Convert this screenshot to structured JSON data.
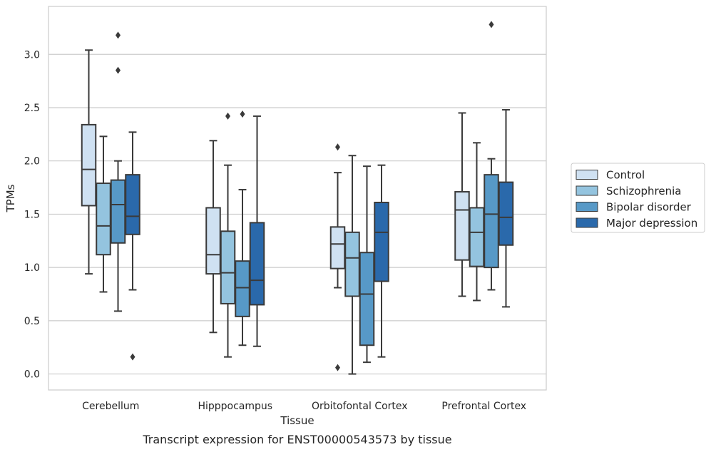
{
  "chart_data": {
    "type": "box",
    "title": "",
    "caption": "Transcript expression for ENST00000543573 by tissue",
    "xlabel": "Tissue",
    "ylabel": "TPMs",
    "ylim": [
      -0.15,
      3.45
    ],
    "yticks": [
      0.0,
      0.5,
      1.0,
      1.5,
      2.0,
      2.5,
      3.0
    ],
    "ytick_labels": [
      "0.0",
      "0.5",
      "1.0",
      "1.5",
      "2.0",
      "2.5",
      "3.0"
    ],
    "grid": "horizontal",
    "legend_position": "right",
    "categories": [
      "Cerebellum",
      "Hipppocampus",
      "Orbitofontal Cortex",
      "Prefrontal Cortex"
    ],
    "series": [
      {
        "name": "Control",
        "color": "#cfe1f2",
        "boxes": [
          {
            "whislo": 0.94,
            "q1": 1.58,
            "med": 1.92,
            "q3": 2.34,
            "whishi": 3.04,
            "fliers": []
          },
          {
            "whislo": 0.39,
            "q1": 0.94,
            "med": 1.12,
            "q3": 1.56,
            "whishi": 2.19,
            "fliers": []
          },
          {
            "whislo": 0.81,
            "q1": 0.99,
            "med": 1.22,
            "q3": 1.38,
            "whishi": 1.89,
            "fliers": [
              2.13,
              0.06
            ]
          },
          {
            "whislo": 0.73,
            "q1": 1.07,
            "med": 1.54,
            "q3": 1.71,
            "whishi": 2.45,
            "fliers": []
          }
        ]
      },
      {
        "name": "Schizophrenia",
        "color": "#94c4df",
        "boxes": [
          {
            "whislo": 0.77,
            "q1": 1.12,
            "med": 1.39,
            "q3": 1.79,
            "whishi": 2.23,
            "fliers": []
          },
          {
            "whislo": 0.16,
            "q1": 0.66,
            "med": 0.95,
            "q3": 1.34,
            "whishi": 1.96,
            "fliers": [
              2.42
            ]
          },
          {
            "whislo": 0.0,
            "q1": 0.73,
            "med": 1.09,
            "q3": 1.33,
            "whishi": 2.05,
            "fliers": []
          },
          {
            "whislo": 0.69,
            "q1": 1.01,
            "med": 1.33,
            "q3": 1.56,
            "whishi": 2.17,
            "fliers": []
          }
        ]
      },
      {
        "name": "Bipolar disorder",
        "color": "#5799c7",
        "boxes": [
          {
            "whislo": 0.59,
            "q1": 1.23,
            "med": 1.59,
            "q3": 1.82,
            "whishi": 2.0,
            "fliers": [
              3.18,
              2.85
            ]
          },
          {
            "whislo": 0.27,
            "q1": 0.54,
            "med": 0.81,
            "q3": 1.06,
            "whishi": 1.73,
            "fliers": [
              2.44
            ]
          },
          {
            "whislo": 0.11,
            "q1": 0.27,
            "med": 0.75,
            "q3": 1.14,
            "whishi": 1.95,
            "fliers": []
          },
          {
            "whislo": 0.79,
            "q1": 1.0,
            "med": 1.5,
            "q3": 1.87,
            "whishi": 2.02,
            "fliers": [
              3.28
            ]
          }
        ]
      },
      {
        "name": "Major depression",
        "color": "#2a69ab",
        "boxes": [
          {
            "whislo": 0.79,
            "q1": 1.31,
            "med": 1.48,
            "q3": 1.87,
            "whishi": 2.27,
            "fliers": [
              0.16
            ]
          },
          {
            "whislo": 0.26,
            "q1": 0.65,
            "med": 0.88,
            "q3": 1.42,
            "whishi": 2.42,
            "fliers": []
          },
          {
            "whislo": 0.16,
            "q1": 0.87,
            "med": 1.33,
            "q3": 1.61,
            "whishi": 1.96,
            "fliers": []
          },
          {
            "whislo": 0.63,
            "q1": 1.21,
            "med": 1.47,
            "q3": 1.8,
            "whishi": 2.48,
            "fliers": []
          }
        ]
      }
    ]
  }
}
